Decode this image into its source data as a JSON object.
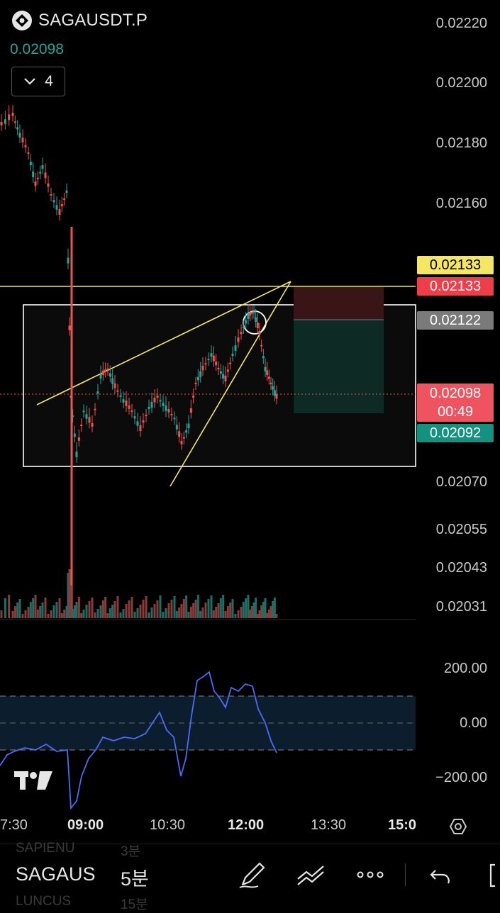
{
  "header": {
    "symbol": "SAGAUSDT.P",
    "last_price": "0.02098",
    "collapsed_count": "4"
  },
  "price_axis": [
    "0.02220",
    "0.02200",
    "0.02180",
    "0.02160",
    "0.02070",
    "0.02055",
    "0.02043",
    "0.02031"
  ],
  "tags": {
    "yellow": "0.02133",
    "red_top": "0.02133",
    "gray": "0.02122",
    "last": "0.02098",
    "countdown": "00:49",
    "green": "0.02092"
  },
  "osc_axis": [
    "200.00",
    "0.00",
    "−200.00"
  ],
  "time_axis": [
    "7:30",
    "09:00",
    "10:30",
    "12:00",
    "13:30",
    "15:0"
  ],
  "bottom": {
    "symbol": "SAGAUS",
    "interval": "5분",
    "ghost_items": [
      "SAPIENU",
      "3분",
      "LUNCUS",
      "15분"
    ]
  },
  "colors": {
    "up": "#26a69a",
    "down": "#ef5350",
    "lines": "#f5e663",
    "osc_line": "#4a6cf7"
  },
  "chart_data": {
    "type": "candlestick",
    "y_range": [
      0.02025,
      0.0223
    ],
    "x_labels": [
      "7:30",
      "09:00",
      "10:30",
      "12:00",
      "13:30",
      "15:0"
    ]
  }
}
